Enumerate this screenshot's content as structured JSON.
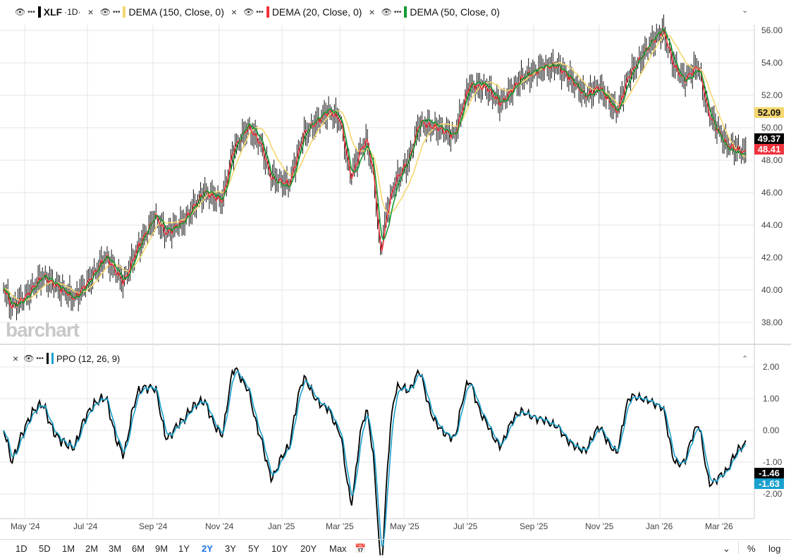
{
  "legend": {
    "symbol": "XLF",
    "interval": "·1D·",
    "indicators": [
      {
        "label": "DEMA (150, Close, 0)",
        "color": "#f5d76e",
        "period": 150
      },
      {
        "label": "DEMA (20, Close, 0)",
        "color": "#f0323c",
        "period": 20
      },
      {
        "label": "DEMA (50, Close, 0)",
        "color": "#139a2f",
        "period": 50
      }
    ],
    "ppo_label": "PPO (12, 26, 9)"
  },
  "watermark": "barchart",
  "chart_data": {
    "type": "ohlc",
    "title": "XLF 1D",
    "x_unit": "weeks",
    "price_anchors": [
      [
        0.5,
        40.2
      ],
      [
        1.5,
        39
      ],
      [
        3.4,
        39.5
      ],
      [
        5.9,
        40.8
      ],
      [
        8.8,
        40
      ],
      [
        10.3,
        39.5
      ],
      [
        12.3,
        40.5
      ],
      [
        14.7,
        42
      ],
      [
        17.2,
        40.5
      ],
      [
        19.1,
        42.5
      ],
      [
        21.6,
        44.5
      ],
      [
        23,
        43.5
      ],
      [
        25.5,
        44.2
      ],
      [
        28.4,
        46
      ],
      [
        30.9,
        45.5
      ],
      [
        32.4,
        48.5
      ],
      [
        34.5,
        50
      ],
      [
        36.3,
        49
      ],
      [
        37.7,
        47
      ],
      [
        40.2,
        46.5
      ],
      [
        42.2,
        49.5
      ],
      [
        45.6,
        51
      ],
      [
        47.3,
        50.5
      ],
      [
        48.8,
        47
      ],
      [
        50,
        48.5
      ],
      [
        51,
        49.2
      ],
      [
        52,
        47
      ],
      [
        52.9,
        42.5
      ],
      [
        53.9,
        45
      ],
      [
        54.9,
        46.5
      ],
      [
        56.9,
        48
      ],
      [
        58.3,
        50.2
      ],
      [
        60.8,
        50
      ],
      [
        63.2,
        49.5
      ],
      [
        65.2,
        52.5
      ],
      [
        67.6,
        52.5
      ],
      [
        69.6,
        51.5
      ],
      [
        72.5,
        53
      ],
      [
        75.5,
        53.7
      ],
      [
        77.5,
        53.8
      ],
      [
        79.4,
        53
      ],
      [
        81.4,
        52
      ],
      [
        83.3,
        52.5
      ],
      [
        85.8,
        51
      ],
      [
        87.3,
        53
      ],
      [
        90.2,
        55
      ],
      [
        92.2,
        56
      ],
      [
        93.6,
        54
      ],
      [
        95.1,
        53
      ],
      [
        97.1,
        53.8
      ],
      [
        98.5,
        51
      ],
      [
        101,
        49
      ],
      [
        103.9,
        48.4
      ]
    ],
    "price_axis": {
      "ticks": [
        "56.00",
        "54.00",
        "52.00",
        "50.00",
        "48.00",
        "46.00",
        "44.00",
        "42.00",
        "40.00",
        "38.00"
      ],
      "range": [
        37.3,
        57.6
      ]
    },
    "ppo_axis": {
      "ticks": [
        "2.00",
        "1.00",
        "0.00",
        "-1.00",
        "-2.00"
      ],
      "range": [
        -2.7,
        2.6
      ]
    },
    "x_ticks": [
      "May '24",
      "Jul '24",
      "Sep '24",
      "Nov '24",
      "Jan '25",
      "Mar '25",
      "May '25",
      "Jul '25",
      "Sep '25",
      "Nov '25",
      "Jan '26",
      "Mar '26"
    ],
    "last_values": {
      "dema150": "52.09",
      "close": "49.37",
      "dema20": "48.41",
      "ppo": "-1.46",
      "ppo_signal": "-1.63"
    }
  },
  "ranges": [
    "1D",
    "5D",
    "1M",
    "2M",
    "3M",
    "6M",
    "9M",
    "1Y",
    "2Y",
    "3Y",
    "5Y",
    "10Y",
    "20Y",
    "Max"
  ],
  "active_range": "2Y",
  "controls": {
    "percent": "%",
    "log": "log"
  }
}
